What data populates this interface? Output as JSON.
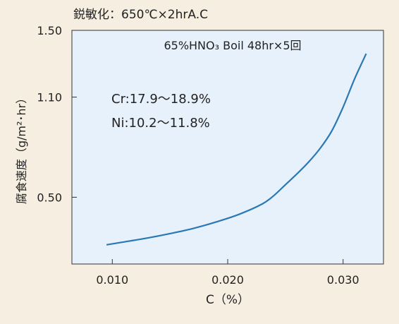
{
  "chart_data": {
    "type": "line",
    "title": "鋭敏化：650℃×2hrA.C",
    "annotations": {
      "condition": "65%HNO₃ Boil 48hr×5回",
      "cr": "Cr:17.9～18.9%",
      "ni": "Ni:10.2～11.8%"
    },
    "xlabel": "C（%）",
    "ylabel": "腐食速度（g/m²･hr）",
    "xlim": [
      0.0065,
      0.0335
    ],
    "ylim": [
      0.1,
      1.5
    ],
    "xticks": [
      {
        "value": 0.01,
        "label": "0.010"
      },
      {
        "value": 0.02,
        "label": "0.020"
      },
      {
        "value": 0.03,
        "label": "0.030"
      }
    ],
    "yticks": [
      {
        "value": 0.5,
        "label": "0.50"
      },
      {
        "value": 1.1,
        "label": "1.10"
      },
      {
        "value": 1.5,
        "label": "1.50"
      }
    ],
    "grid": false,
    "series": [
      {
        "color": "#2a78b4",
        "x": [
          0.0095,
          0.011,
          0.013,
          0.015,
          0.017,
          0.019,
          0.021,
          0.023,
          0.024,
          0.025,
          0.026,
          0.027,
          0.028,
          0.029,
          0.03,
          0.031,
          0.032
        ],
        "y": [
          0.215,
          0.232,
          0.255,
          0.282,
          0.313,
          0.352,
          0.398,
          0.46,
          0.51,
          0.575,
          0.64,
          0.71,
          0.792,
          0.895,
          1.04,
          1.21,
          1.36
        ]
      }
    ],
    "colors": {
      "plot_background": "#e7f1fb",
      "page_background": "#f6efe1",
      "line": "#2a78b4"
    }
  }
}
